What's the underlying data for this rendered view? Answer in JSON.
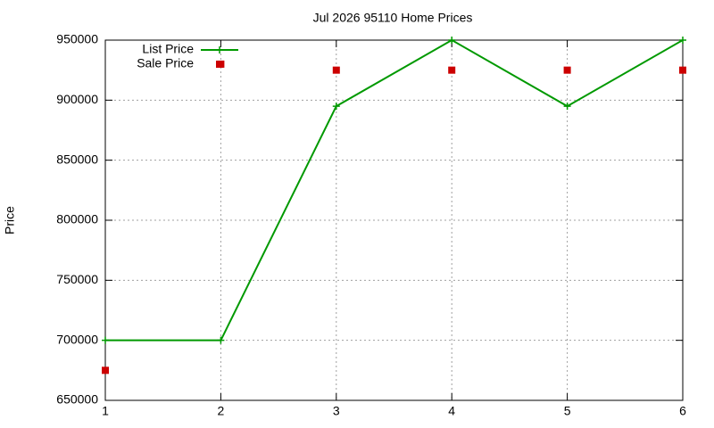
{
  "chart_data": {
    "type": "line",
    "title": "Jul 2026 95110 Home Prices",
    "y_label": "Price",
    "x": [
      1,
      2,
      3,
      4,
      5,
      6
    ],
    "series": [
      {
        "name": "List Price",
        "color": "#009900",
        "values": [
          700000,
          700000,
          895000,
          950000,
          895000,
          950000
        ],
        "line": true,
        "marker": "plus"
      },
      {
        "name": "Sale Price",
        "color": "#cc0000",
        "values": [
          675000,
          930000,
          925000,
          925000,
          925000,
          925000
        ],
        "line": false,
        "marker": "square"
      }
    ],
    "xlim": [
      1,
      6
    ],
    "xticks": [
      1,
      2,
      3,
      4,
      5,
      6
    ],
    "ylim": [
      650000,
      950000
    ],
    "yticks": [
      650000,
      700000,
      750000,
      800000,
      850000,
      900000,
      950000
    ],
    "grid": true,
    "legend": "top-left"
  }
}
